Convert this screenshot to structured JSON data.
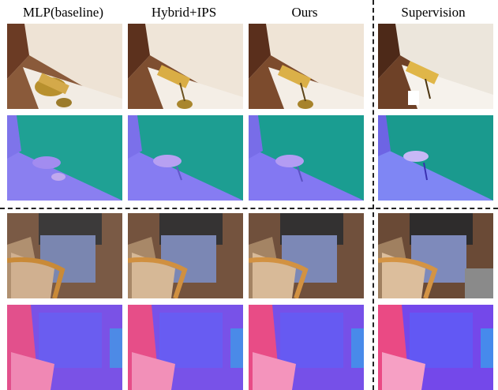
{
  "figure": {
    "columns": [
      {
        "label": "MLP(baseline)"
      },
      {
        "label": "Hybrid+IPS"
      },
      {
        "label": "Ours"
      },
      {
        "label": "Supervision"
      }
    ]
  }
}
